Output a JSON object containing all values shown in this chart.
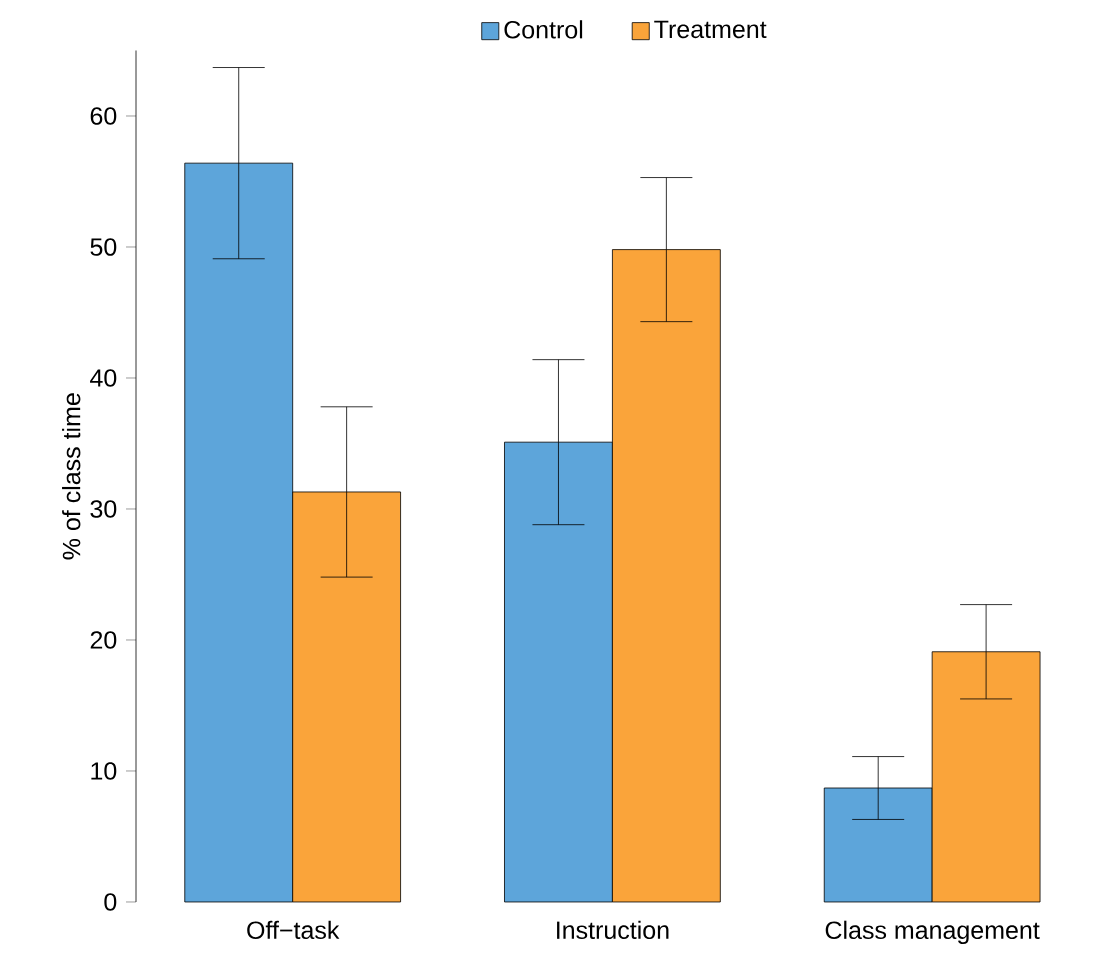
{
  "chart_data": {
    "type": "bar",
    "ylabel": "% of class time",
    "categories": [
      "Off−task",
      "Instruction",
      "Class management"
    ],
    "series": [
      {
        "name": "Control",
        "color": "#5da5da",
        "values": [
          56.4,
          35.1,
          8.7
        ],
        "errors": [
          7.3,
          6.3,
          2.4
        ]
      },
      {
        "name": "Treatment",
        "color": "#faa43a",
        "values": [
          31.3,
          49.8,
          19.1
        ],
        "errors": [
          6.5,
          5.5,
          3.6
        ]
      }
    ],
    "ylim": [
      0,
      65
    ],
    "yticks": [
      0,
      10,
      20,
      30,
      40,
      50,
      60
    ],
    "legend": "top",
    "grid": false
  }
}
